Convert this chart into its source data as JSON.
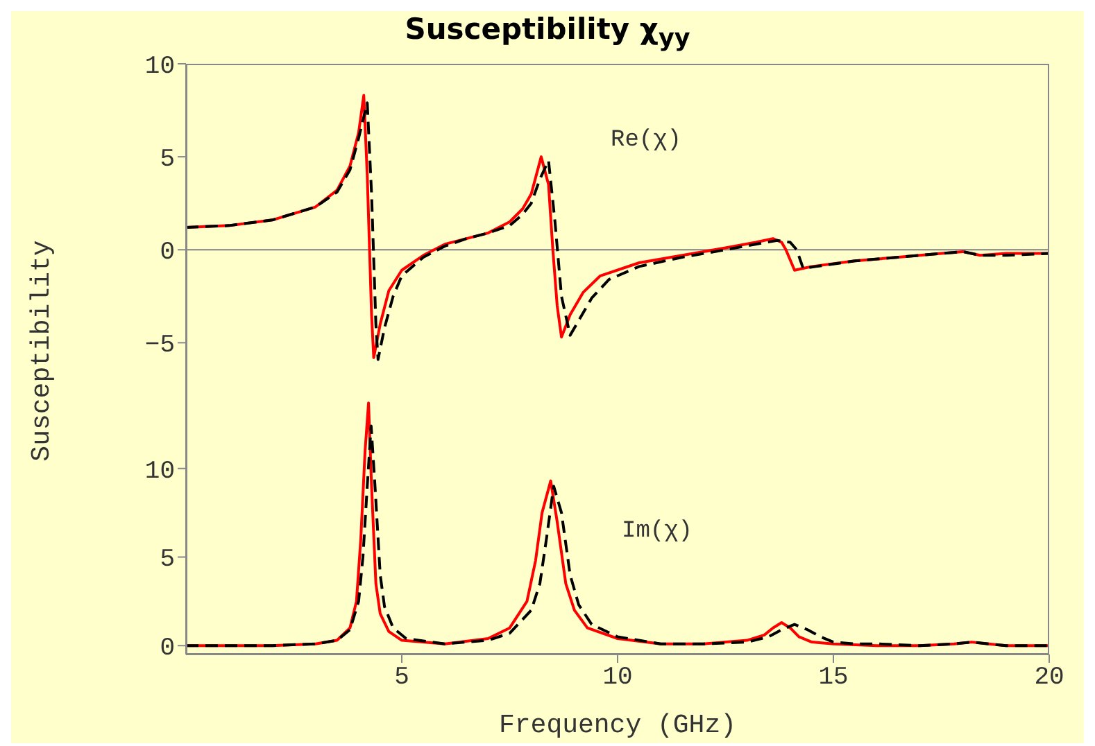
{
  "chart_data": [
    {
      "type": "line",
      "title": "Susceptibility χ$_{yy}$",
      "ylabel": "Susceptibility",
      "annotations": [
        "Re(χ)"
      ],
      "xlim": [
        0,
        20
      ],
      "xticks": [
        5,
        10,
        15,
        20
      ],
      "ylim": [
        -7,
        10
      ],
      "yticks": [
        {
          "value": -5,
          "label": "−5"
        },
        0,
        5,
        10
      ],
      "tick_labels": "y",
      "marker": "none",
      "ref_lines": [
        {
          "axis": "y",
          "value": 0,
          "color": "#808080"
        }
      ],
      "series": [
        {
          "color": "#ff0000",
          "line_style": "solid",
          "x": [
            0,
            1,
            2,
            3,
            3.5,
            3.8,
            4.0,
            4.12,
            4.2,
            4.3,
            4.35,
            4.5,
            4.7,
            5.0,
            5.5,
            6.0,
            6.5,
            7.0,
            7.5,
            7.8,
            8.0,
            8.23,
            8.4,
            8.5,
            8.6,
            8.7,
            8.9,
            9.2,
            9.6,
            10.5,
            11.5,
            12.5,
            13.2,
            13.6,
            13.8,
            13.9,
            14.1,
            14.5,
            15.5,
            16.5,
            17.5,
            18.0,
            18.4,
            19,
            20
          ],
          "values": [
            1.2,
            1.3,
            1.6,
            2.3,
            3.2,
            4.5,
            6.3,
            8.3,
            4.0,
            -3.5,
            -5.8,
            -4.0,
            -2.2,
            -1.1,
            -0.3,
            0.3,
            0.6,
            0.9,
            1.5,
            2.2,
            3.0,
            5.0,
            3.5,
            0.0,
            -3.0,
            -4.7,
            -3.5,
            -2.3,
            -1.4,
            -0.7,
            -0.3,
            0.1,
            0.4,
            0.6,
            0.4,
            0.0,
            -1.1,
            -0.9,
            -0.6,
            -0.4,
            -0.2,
            -0.1,
            -0.3,
            -0.2,
            -0.2
          ]
        },
        {
          "color": "#000000",
          "line_style": "dashed",
          "x": [
            0,
            1,
            2,
            3,
            3.5,
            3.8,
            4.0,
            4.2,
            4.3,
            4.4,
            4.45,
            4.6,
            4.8,
            5.0,
            5.5,
            6.0,
            6.5,
            7.0,
            7.5,
            7.8,
            8.0,
            8.2,
            8.4,
            8.55,
            8.7,
            8.9,
            9.1,
            9.4,
            9.8,
            10.5,
            11.5,
            12.5,
            13.2,
            13.7,
            14.0,
            14.15,
            14.3,
            14.6,
            15.5,
            16.5,
            17.5,
            18.0,
            18.4,
            19,
            20
          ],
          "values": [
            1.2,
            1.3,
            1.6,
            2.3,
            3.1,
            4.3,
            6.0,
            7.9,
            3.0,
            -4.0,
            -5.9,
            -4.2,
            -2.5,
            -1.4,
            -0.4,
            0.2,
            0.6,
            0.9,
            1.3,
            1.9,
            2.5,
            3.8,
            4.8,
            1.5,
            -2.5,
            -4.6,
            -3.8,
            -2.6,
            -1.6,
            -0.9,
            -0.4,
            0.0,
            0.3,
            0.5,
            0.4,
            0.0,
            -1.0,
            -0.9,
            -0.6,
            -0.4,
            -0.2,
            -0.1,
            -0.3,
            -0.3,
            -0.2
          ]
        }
      ]
    },
    {
      "type": "line",
      "xlabel": "Frequency (GHz)",
      "annotations": [
        "Im(χ)"
      ],
      "xlim": [
        0,
        20
      ],
      "xticks": [
        5,
        10,
        15,
        20
      ],
      "ylim": [
        -0.5,
        15
      ],
      "yticks": [
        0,
        5,
        10
      ],
      "marker": "none",
      "series": [
        {
          "color": "#ff0000",
          "line_style": "solid",
          "x": [
            0,
            2,
            3,
            3.5,
            3.8,
            3.95,
            4.05,
            4.15,
            4.23,
            4.3,
            4.4,
            4.5,
            4.7,
            5.0,
            6,
            7,
            7.5,
            7.9,
            8.1,
            8.25,
            8.45,
            8.6,
            8.8,
            9.0,
            9.3,
            10,
            11,
            12,
            13,
            13.4,
            13.6,
            13.8,
            14.0,
            14.2,
            14.5,
            15,
            16,
            17,
            17.8,
            18.2,
            18.6,
            19,
            20
          ],
          "values": [
            0,
            0,
            0.1,
            0.3,
            1.0,
            2.5,
            6.0,
            11,
            13.7,
            9.0,
            3.5,
            1.8,
            0.8,
            0.3,
            0.1,
            0.4,
            1.0,
            2.5,
            4.8,
            7.5,
            9.3,
            7.0,
            3.5,
            2.0,
            1.0,
            0.4,
            0.1,
            0.1,
            0.3,
            0.6,
            1.0,
            1.3,
            1.0,
            0.5,
            0.2,
            0.1,
            0,
            0,
            0.1,
            0.2,
            0.1,
            0,
            0
          ]
        },
        {
          "color": "#000000",
          "line_style": "dashed",
          "x": [
            0,
            2,
            3,
            3.5,
            3.8,
            4.0,
            4.1,
            4.2,
            4.29,
            4.38,
            4.5,
            4.6,
            4.8,
            5.1,
            6,
            7,
            7.5,
            8.0,
            8.2,
            8.35,
            8.52,
            8.7,
            8.9,
            9.1,
            9.4,
            10,
            11,
            12,
            13,
            13.5,
            13.8,
            14.1,
            14.4,
            14.7,
            15,
            15.5,
            16,
            17,
            17.8,
            18.2,
            18.6,
            19,
            20
          ],
          "values": [
            0,
            0,
            0.1,
            0.3,
            0.9,
            2.5,
            5.0,
            9.0,
            12.4,
            9.0,
            4.0,
            2.2,
            1.0,
            0.4,
            0.1,
            0.3,
            0.7,
            2.0,
            3.5,
            6.0,
            9.0,
            7.5,
            4.0,
            2.3,
            1.2,
            0.5,
            0.1,
            0.1,
            0.2,
            0.5,
            0.9,
            1.2,
            0.9,
            0.5,
            0.2,
            0.1,
            0.1,
            0,
            0.1,
            0.2,
            0.1,
            0,
            0
          ]
        }
      ]
    }
  ]
}
